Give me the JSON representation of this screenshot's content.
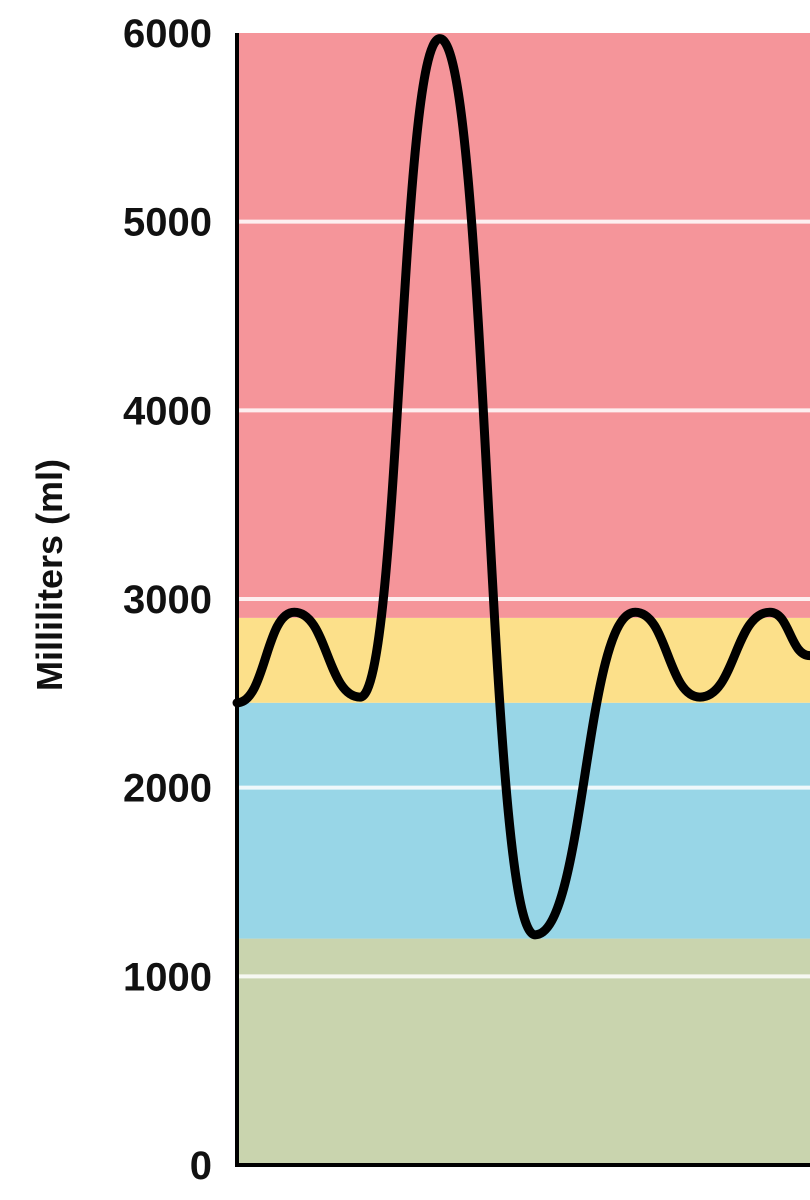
{
  "chart_data": {
    "type": "line",
    "title": "",
    "xlabel": "",
    "ylabel": "Milliliters (ml)",
    "ylim": [
      0,
      6000
    ],
    "yticks": [
      "0",
      "1000",
      "2000",
      "3000",
      "4000",
      "5000",
      "6000"
    ],
    "grid": true,
    "bands": [
      {
        "from": 0,
        "to": 1200,
        "color": "#c9d4ae"
      },
      {
        "from": 1200,
        "to": 2450,
        "color": "#98d6e7"
      },
      {
        "from": 2450,
        "to": 2900,
        "color": "#fce08a"
      },
      {
        "from": 2900,
        "to": 6000,
        "color": "#f5959a"
      }
    ],
    "series": [
      {
        "color": "#000000",
        "points": [
          {
            "t": 0,
            "ml": 2450
          },
          {
            "t": 10,
            "ml": 2930
          },
          {
            "t": 21.5,
            "ml": 2480
          },
          {
            "t": 35.4,
            "ml": 5970
          },
          {
            "t": 52,
            "ml": 1220
          },
          {
            "t": 69.5,
            "ml": 2930
          },
          {
            "t": 80.8,
            "ml": 2480
          },
          {
            "t": 93,
            "ml": 2930
          },
          {
            "t": 100,
            "ml": 2700
          }
        ]
      }
    ]
  }
}
